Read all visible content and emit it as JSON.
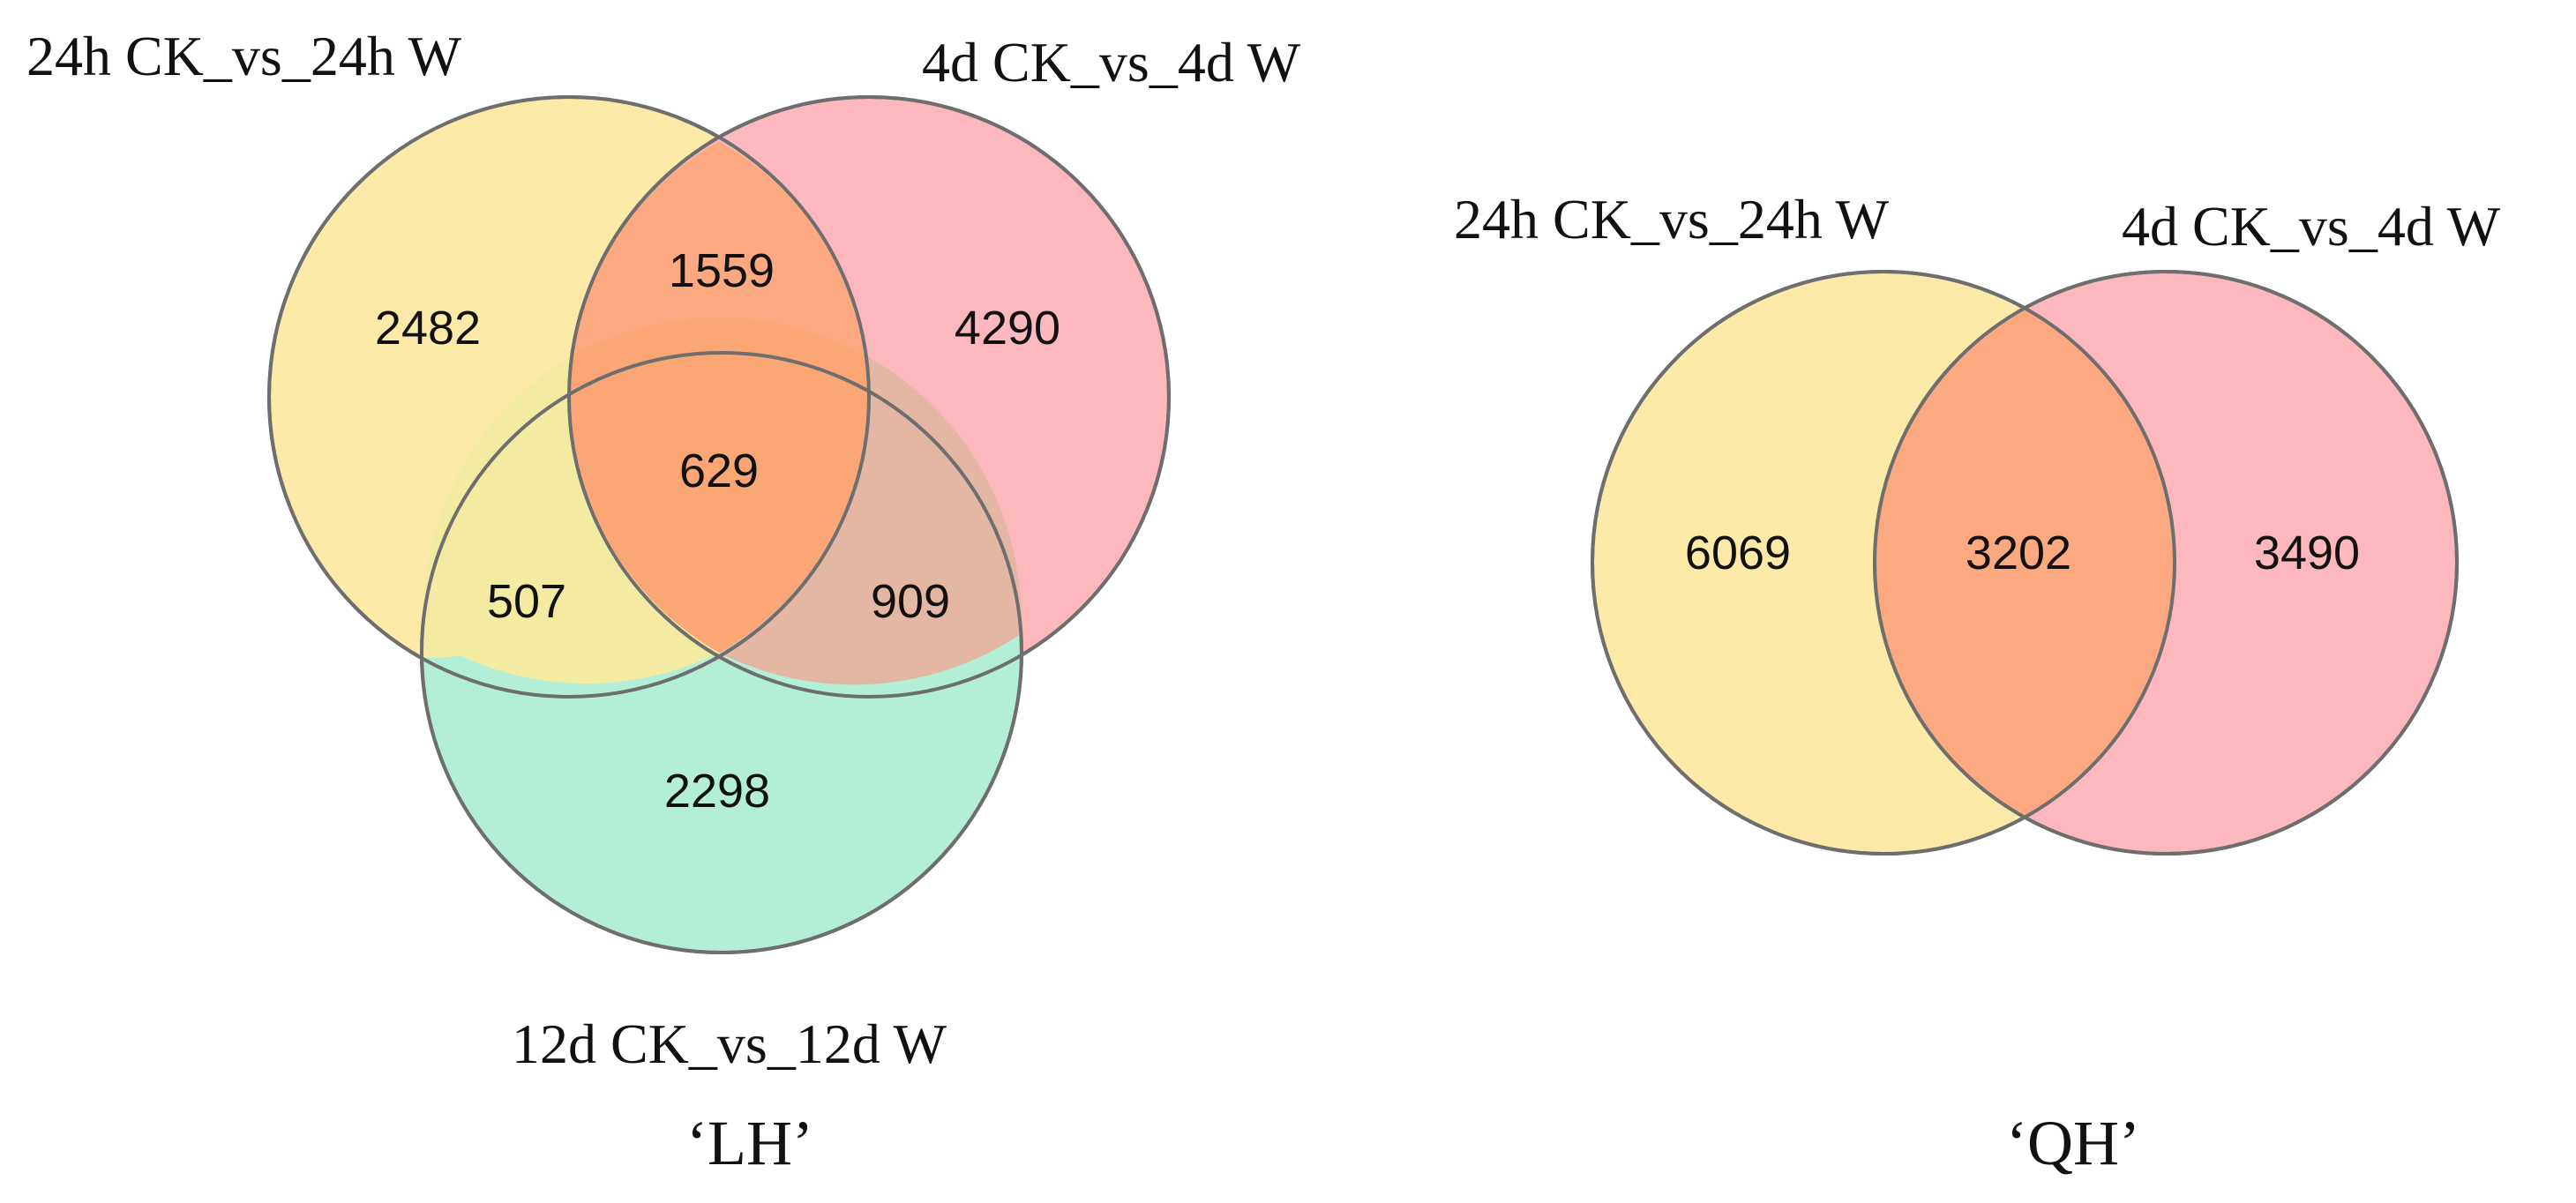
{
  "colors": {
    "set_a": "#fde9a8",
    "set_b": "#fdb8be",
    "set_c": "#b3efd7",
    "ab_overlap": "#fca982",
    "abc_overlap": "#faa675",
    "ac_overlap": "#f4eba2",
    "bc_overlap": "#e4b7a4",
    "outline": "#6e6e6e"
  },
  "lh": {
    "title": "‘LH’",
    "sets": {
      "a": "24h CK_vs_24h W",
      "b": "4d CK_vs_4d W",
      "c": "12d CK_vs_12d W"
    },
    "counts": {
      "a_only": "2482",
      "b_only": "4290",
      "c_only": "2298",
      "ab": "1559",
      "ac": "507",
      "bc": "909",
      "abc": "629"
    }
  },
  "qh": {
    "title": "‘QH’",
    "sets": {
      "a": "24h CK_vs_24h W",
      "b": "4d CK_vs_4d W"
    },
    "counts": {
      "a_only": "6069",
      "ab": "3202",
      "b_only": "3490"
    }
  }
}
